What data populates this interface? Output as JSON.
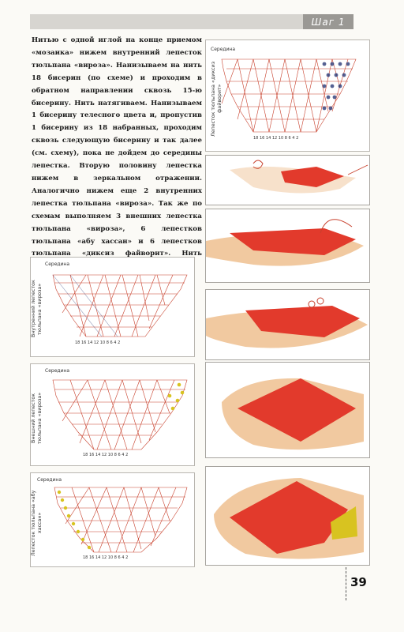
{
  "header": {
    "step_label": "Шаг 1"
  },
  "instructions": "Нитью с одной иглой на конце приемом «мозаика» нижем внутренний лепесток тюльпана «вироза». Нанизываем на нить 18 бисерин (по схеме) и проходим в обратном направлении сквозь 15-ю бисерину. Нить натягиваем. Нанизываем 1 бисерину телесного цвета и, пропустив 1 бисерину из 18 набранных, проходим сквозь следующую бисерину и так далее (см. схему), пока не дойдем до середины лепестка. Вторую половину лепестка нижем в зеркальном отражении. Аналогично нижем еще 2 внутренних лепестка тюльпана «вироза». Так же по схемам выполняем 3 внешних лепестка тюльпана «вироза», 6 лепестков тюльпана «абу хассан» и 6 лепестков тюльпана «диксиз файворит». Нить закрепляем, но не обрезаем.",
  "schemas": [
    {
      "middle": "Середина",
      "caption": "Лепесток тюльпана «диксиз файворит»",
      "numbers": "18 16 14 12 10 8 6 4 2"
    },
    {
      "middle": "Середина",
      "caption": "Внутренний лепесток тюльпана «вироза»",
      "numbers": "18 16 14 12 10 8 6 4 2"
    },
    {
      "middle": "Середина",
      "caption": "Внешний лепесток тюльпана «вироза»",
      "numbers": "18 16 14 12 10 8 6 4 2"
    },
    {
      "middle": "Середина",
      "caption": "Лепесток тюльпана «абу хассан»",
      "numbers": "18 16 14 12 10 8 6 4 2"
    }
  ],
  "colors": {
    "red_bead": "#e23a2c",
    "flesh_bead": "#f1c9a0",
    "yellow_bead": "#d8c320",
    "navy_bead": "#2b3a78",
    "grid_line": "#c8412d"
  },
  "page_number": "39"
}
